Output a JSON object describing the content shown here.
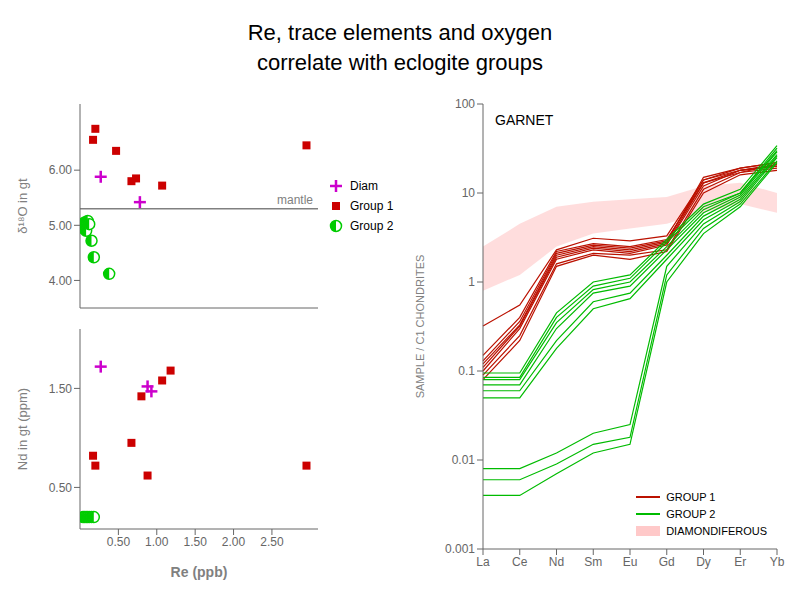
{
  "chart_data": [
    {
      "type": "scatter",
      "title": "Re, trace elements and oxygen\ncorrelate with eclogite groups",
      "ylabel": "δ¹⁸O in gt",
      "xlim": [
        0.0,
        3.1
      ],
      "ylim": [
        3.5,
        7.2
      ],
      "yticks": [
        {
          "value": 4.0,
          "label": "4.00"
        },
        {
          "value": 5.0,
          "label": "5.00"
        },
        {
          "value": 6.0,
          "label": "6.00"
        }
      ],
      "tick_labels": "y",
      "grid": false,
      "legend": "right",
      "reference_lines": [
        {
          "value": 5.3,
          "label": "mantle",
          "color": "gray"
        }
      ],
      "series": [
        {
          "name": "Diam",
          "color": "#cc00cc",
          "marker": "plus",
          "x": [
            0.27,
            0.78
          ],
          "values": [
            5.88,
            5.42
          ]
        },
        {
          "name": "Group 1",
          "color": "#cc0000",
          "marker": "square",
          "x": [
            0.17,
            0.2,
            0.47,
            0.67,
            0.73,
            1.07,
            2.95
          ],
          "values": [
            6.55,
            6.75,
            6.35,
            5.8,
            5.85,
            5.72,
            6.45
          ]
        },
        {
          "name": "Group 2",
          "color": "#00cc00",
          "marker": "half_circle",
          "x": [
            0.04,
            0.06,
            0.08,
            0.1,
            0.12,
            0.15,
            0.18,
            0.38
          ],
          "values": [
            4.95,
            5.05,
            4.9,
            5.08,
            5.02,
            4.72,
            4.42,
            4.12
          ]
        }
      ]
    },
    {
      "type": "scatter",
      "xlabel": "Re (ppb)",
      "ylabel": "Nd in gt (ppm)",
      "xlim": [
        0.0,
        3.1
      ],
      "xticks": [
        {
          "value": 0.5,
          "label": "0.50"
        },
        {
          "value": 1.0,
          "label": "1.00"
        },
        {
          "value": 1.5,
          "label": "1.50"
        },
        {
          "value": 2.0,
          "label": "2.00"
        },
        {
          "value": 2.5,
          "label": "2.50"
        }
      ],
      "ylim": [
        0.08,
        2.1
      ],
      "yticks": [
        {
          "value": 0.5,
          "label": "0.50"
        },
        {
          "value": 1.5,
          "label": "1.50"
        }
      ],
      "grid": false,
      "series": [
        {
          "color": "#cc0000",
          "marker": "square",
          "x": [
            0.17,
            0.2,
            0.67,
            0.8,
            0.88,
            1.07,
            1.18,
            2.95
          ],
          "values": [
            0.82,
            0.72,
            0.95,
            1.42,
            0.62,
            1.58,
            1.68,
            0.72
          ]
        },
        {
          "color": "#cc00cc",
          "marker": "plus",
          "x": [
            0.27,
            0.88,
            0.93
          ],
          "values": [
            1.72,
            1.52,
            1.47
          ]
        },
        {
          "color": "#00cc00",
          "marker": "half_circle",
          "x": [
            0.04,
            0.06,
            0.08,
            0.1,
            0.12,
            0.15,
            0.18
          ],
          "values": [
            0.2,
            0.2,
            0.2,
            0.2,
            0.2,
            0.2,
            0.2
          ]
        }
      ]
    },
    {
      "type": "line",
      "title": "GARNET",
      "categories": [
        "La",
        "Ce",
        "Nd",
        "Sm",
        "Eu",
        "Gd",
        "Dy",
        "Er",
        "Yb"
      ],
      "ylabel": "SAMPLE / C1 CHONDRITES",
      "log": "y",
      "ylim": [
        0.001,
        100
      ],
      "yticks": [
        0.001,
        0.01,
        0.1,
        1,
        10,
        100
      ],
      "grid": false,
      "legend": "lower right",
      "series": [
        {
          "name": "GROUP 1",
          "color": "#bb1100",
          "type": "line",
          "values": [
            [
              0.09,
              0.25,
              1.6,
              2.1,
              2.0,
              2.3,
              11,
              17,
              21
            ],
            [
              0.1,
              0.3,
              1.8,
              2.3,
              2.1,
              2.6,
              12,
              18,
              20
            ],
            [
              0.11,
              0.32,
              1.9,
              2.4,
              2.2,
              2.7,
              13,
              17,
              19
            ],
            [
              0.13,
              0.36,
              2.1,
              2.6,
              2.4,
              2.9,
              14,
              18,
              21
            ],
            [
              0.12,
              0.33,
              2.0,
              2.5,
              2.3,
              2.8,
              15,
              19,
              22
            ],
            [
              0.08,
              0.22,
              1.5,
              2.0,
              1.8,
              2.2,
              10,
              16,
              18
            ],
            [
              0.15,
              0.4,
              2.2,
              2.7,
              2.5,
              3.0,
              13,
              18,
              20
            ],
            [
              0.32,
              0.55,
              2.3,
              3.1,
              2.9,
              3.3,
              14,
              19,
              22
            ]
          ]
        },
        {
          "name": "GROUP 2",
          "color": "#00bb00",
          "type": "line",
          "values": [
            [
              0.085,
              0.085,
              0.4,
              0.9,
              1.1,
              2.8,
              7.0,
              10,
              32
            ],
            [
              0.07,
              0.07,
              0.3,
              0.75,
              0.9,
              2.3,
              6.0,
              9.5,
              29
            ],
            [
              0.06,
              0.06,
              0.22,
              0.6,
              0.75,
              2.0,
              5.5,
              9.0,
              27
            ],
            [
              0.08,
              0.08,
              0.35,
              0.82,
              1.0,
              2.5,
              6.5,
              10,
              30
            ],
            [
              0.05,
              0.05,
              0.18,
              0.5,
              0.65,
              1.8,
              5.0,
              8.5,
              26
            ],
            [
              0.095,
              0.095,
              0.45,
              1.0,
              1.2,
              3.0,
              7.5,
              11,
              34
            ],
            [
              0.008,
              0.008,
              0.012,
              0.02,
              0.025,
              1.5,
              4.5,
              8.0,
              25
            ],
            [
              0.006,
              0.006,
              0.009,
              0.015,
              0.018,
              1.2,
              4.0,
              7.5,
              23
            ],
            [
              0.004,
              0.004,
              0.007,
              0.012,
              0.015,
              1.0,
              3.5,
              7.0,
              22
            ]
          ]
        },
        {
          "name": "DIAMONDIFEROUS",
          "color": "#ffbbbb",
          "type": "area",
          "low": [
            0.8,
            1.2,
            2.5,
            3.5,
            4.0,
            4.5,
            6.0,
            7.5,
            6.0
          ],
          "high": [
            2.5,
            4.5,
            7.0,
            8.0,
            8.5,
            9.0,
            12.0,
            13.0,
            10.0
          ]
        }
      ]
    }
  ]
}
